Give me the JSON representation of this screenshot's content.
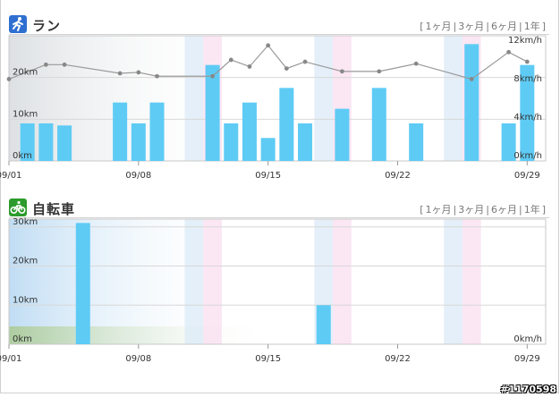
{
  "run_section": {
    "title": "ラン",
    "icon": "running-person-icon",
    "ranges": [
      "1ヶ月",
      "3ヶ月",
      "6ヶ月",
      "1年"
    ]
  },
  "bike_section": {
    "title": "自転車",
    "icon": "bicycle-icon",
    "ranges": [
      "1ヶ月",
      "3ヶ月",
      "6ヶ月",
      "1年"
    ]
  },
  "watermark": "#1170598",
  "colors": {
    "bar": "#5ecbf5",
    "line": "#999999",
    "weekend_sat": "#dbe9f7",
    "weekend_sun": "#f9def0"
  },
  "chart_data": [
    {
      "type": "bar",
      "name": "run",
      "x_ticks": [
        "09/01",
        "09/08",
        "09/15",
        "09/22",
        "09/29"
      ],
      "x_tick_days": [
        1,
        8,
        15,
        22,
        29
      ],
      "y_left_ticks": [
        "0km",
        "10km",
        "20km"
      ],
      "y_left_values": [
        0,
        10,
        20
      ],
      "y_left_max": 30,
      "y_right_ticks": [
        "0km/h",
        "4km/h",
        "8km/h",
        "12km/h"
      ],
      "y_right_values": [
        0,
        4,
        8,
        12
      ],
      "y_right_max": 13,
      "bars": [
        {
          "day": 2,
          "value": 9
        },
        {
          "day": 3,
          "value": 9
        },
        {
          "day": 4,
          "value": 8.5
        },
        {
          "day": 7,
          "value": 14
        },
        {
          "day": 8,
          "value": 9
        },
        {
          "day": 9,
          "value": 14
        },
        {
          "day": 12,
          "value": 23
        },
        {
          "day": 13,
          "value": 9
        },
        {
          "day": 14,
          "value": 14
        },
        {
          "day": 15,
          "value": 5.5
        },
        {
          "day": 16,
          "value": 17.5
        },
        {
          "day": 17,
          "value": 9
        },
        {
          "day": 19,
          "value": 12.5
        },
        {
          "day": 21,
          "value": 17.5
        },
        {
          "day": 23,
          "value": 9
        },
        {
          "day": 26,
          "value": 28
        },
        {
          "day": 28,
          "value": 9
        },
        {
          "day": 29,
          "value": 23
        }
      ],
      "speed_line": [
        {
          "day": 1,
          "value": 8.5
        },
        {
          "day": 3,
          "value": 10
        },
        {
          "day": 4,
          "value": 10
        },
        {
          "day": 7,
          "value": 9.1
        },
        {
          "day": 8,
          "value": 9.2
        },
        {
          "day": 9,
          "value": 8.8
        },
        {
          "day": 12,
          "value": 8.8
        },
        {
          "day": 13,
          "value": 10.5
        },
        {
          "day": 14,
          "value": 9.8
        },
        {
          "day": 15,
          "value": 12
        },
        {
          "day": 16,
          "value": 9.6
        },
        {
          "day": 17,
          "value": 10.3
        },
        {
          "day": 19,
          "value": 9.3
        },
        {
          "day": 21,
          "value": 9.3
        },
        {
          "day": 23,
          "value": 10.1
        },
        {
          "day": 26,
          "value": 8.5
        },
        {
          "day": 28,
          "value": 11.3
        },
        {
          "day": 29,
          "value": 10.3
        }
      ],
      "weekends": [
        {
          "day": 11,
          "kind": "sat"
        },
        {
          "day": 12,
          "kind": "sun"
        },
        {
          "day": 18,
          "kind": "sat"
        },
        {
          "day": 19,
          "kind": "sun"
        },
        {
          "day": 25,
          "kind": "sat"
        },
        {
          "day": 26,
          "kind": "sun"
        }
      ]
    },
    {
      "type": "bar",
      "name": "bike",
      "x_ticks": [
        "09/01",
        "09/08",
        "09/15",
        "09/22",
        "09/29"
      ],
      "x_tick_days": [
        1,
        8,
        15,
        22,
        29
      ],
      "y_left_ticks": [
        "0km",
        "10km",
        "20km",
        "30km"
      ],
      "y_left_values": [
        0,
        10,
        20,
        30
      ],
      "y_left_max": 32,
      "y_right_ticks": [
        "0km/h"
      ],
      "y_right_values": [
        0
      ],
      "y_right_max": 1,
      "bars": [
        {
          "day": 5,
          "value": 31
        },
        {
          "day": 18,
          "value": 10
        }
      ],
      "speed_line": [],
      "weekends": [
        {
          "day": 11,
          "kind": "sat"
        },
        {
          "day": 12,
          "kind": "sun"
        },
        {
          "day": 18,
          "kind": "sat"
        },
        {
          "day": 19,
          "kind": "sun"
        },
        {
          "day": 25,
          "kind": "sat"
        },
        {
          "day": 26,
          "kind": "sun"
        }
      ]
    }
  ]
}
